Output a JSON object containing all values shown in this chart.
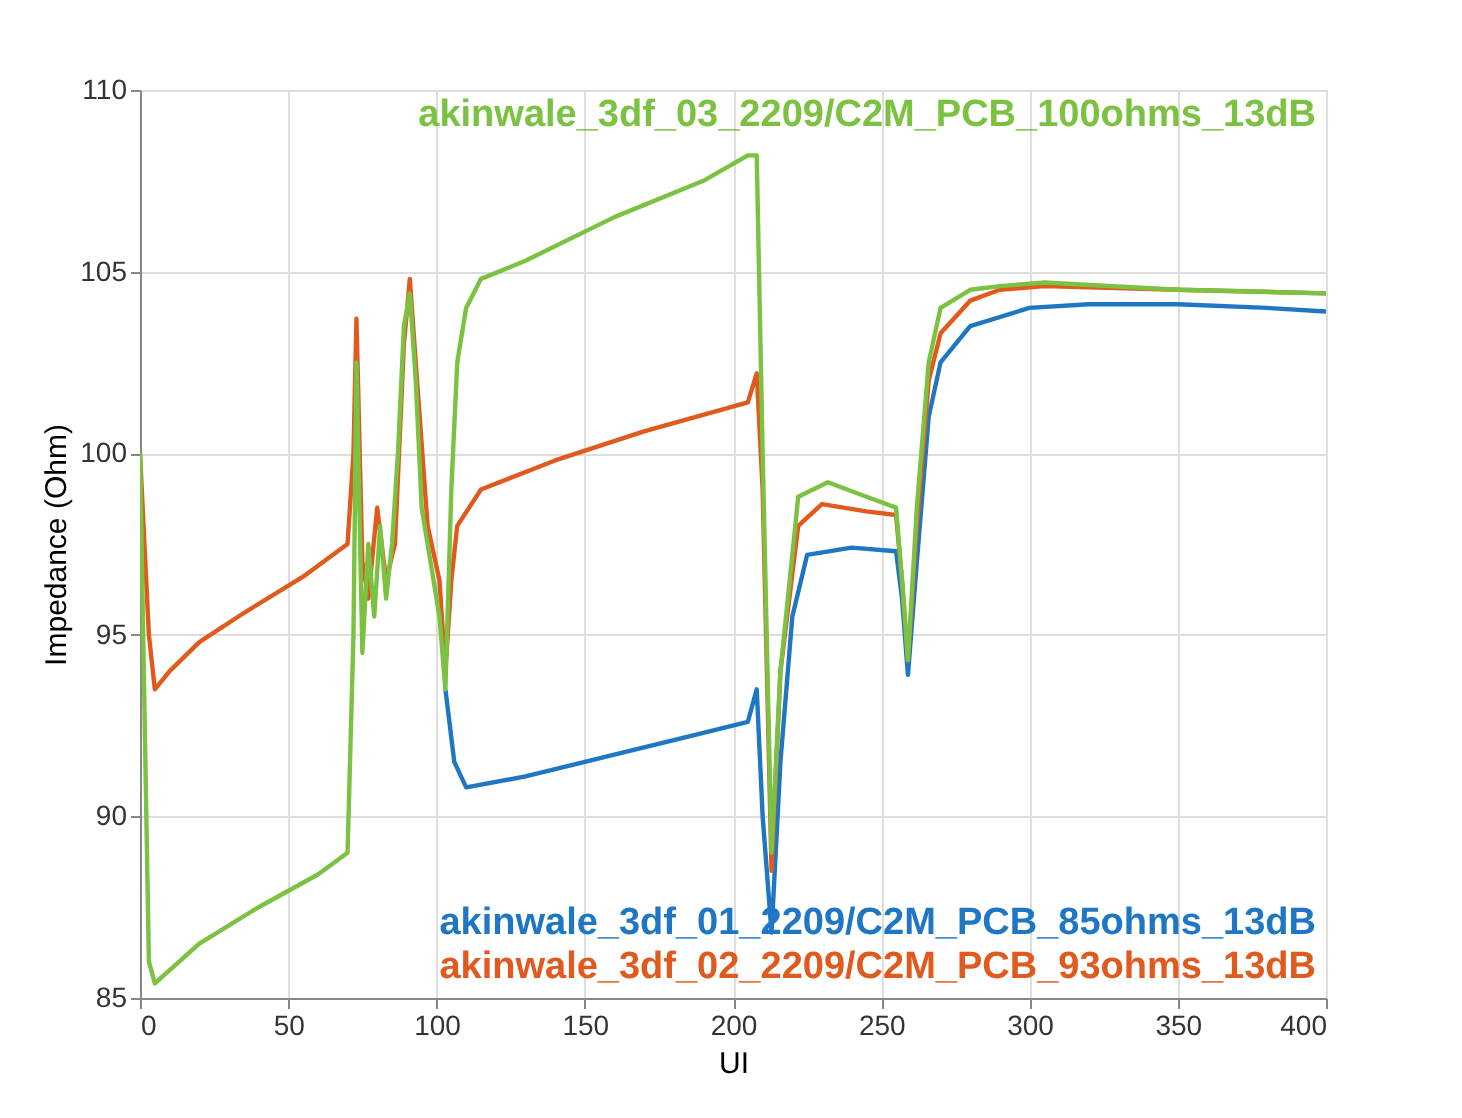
{
  "chart_data": {
    "type": "line",
    "xlabel": "UI",
    "ylabel": "Impedance (Ohm)",
    "xlim": [
      0,
      400
    ],
    "xticks": [
      0,
      50,
      100,
      150,
      200,
      250,
      300,
      350,
      400
    ],
    "ylim": [
      85,
      110
    ],
    "yticks": [
      85,
      90,
      95,
      100,
      105,
      110
    ],
    "grid": true,
    "line_style": "solid",
    "marker": "none",
    "series": [
      {
        "name": "akinwale_3df_01_2209/C2M_PCB_85ohms_13dB",
        "color": "#1f77c4",
        "x": [
          103,
          106,
          110,
          130,
          160,
          190,
          205,
          208,
          210,
          213,
          216,
          220,
          225,
          240,
          255,
          257,
          259,
          262,
          266,
          270,
          280,
          300,
          320,
          350,
          380,
          400
        ],
        "values": [
          93.5,
          91.5,
          90.8,
          91.1,
          91.7,
          92.3,
          92.6,
          93.5,
          90,
          86.8,
          91.5,
          95.5,
          97.2,
          97.4,
          97.3,
          96,
          93.9,
          97,
          101,
          102.5,
          103.5,
          104,
          104.1,
          104.1,
          104,
          103.9
        ]
      },
      {
        "name": "akinwale_3df_02_2209/C2M_PCB_93ohms_13dB",
        "color": "#e05a1e",
        "x": [
          0,
          3,
          5,
          10,
          20,
          35,
          55,
          70,
          72,
          73,
          75,
          77,
          80,
          83,
          86,
          89,
          91,
          93,
          97,
          101,
          103,
          105,
          107,
          115,
          140,
          170,
          205,
          208,
          210,
          213,
          216,
          222,
          230,
          245,
          255,
          257,
          259,
          262,
          266,
          270,
          280,
          290,
          305,
          350,
          400
        ],
        "values": [
          100,
          95,
          93.5,
          94,
          94.8,
          95.6,
          96.6,
          97.5,
          100,
          103.7,
          97,
          96,
          98.5,
          96.5,
          97.5,
          103,
          104.8,
          102.5,
          98,
          96.5,
          94,
          96.5,
          98,
          99,
          99.8,
          100.6,
          101.4,
          102.2,
          99,
          88.5,
          94,
          98,
          98.6,
          98.4,
          98.3,
          96.5,
          94.3,
          98,
          102,
          103.3,
          104.2,
          104.5,
          104.6,
          104.5,
          104.4
        ]
      },
      {
        "name": "akinwale_3df_03_2209/C2M_PCB_100ohms_13dB",
        "color": "#7cc242",
        "x": [
          0,
          3,
          5,
          20,
          40,
          60,
          70,
          72,
          73,
          75,
          77,
          79,
          81,
          83,
          85,
          87,
          89,
          91,
          93,
          95,
          98,
          101,
          103,
          105,
          107,
          110,
          115,
          130,
          160,
          190,
          205,
          208,
          210,
          213,
          216,
          222,
          232,
          245,
          255,
          257,
          259,
          262,
          266,
          270,
          280,
          290,
          305,
          350,
          400
        ],
        "values": [
          100,
          86,
          85.4,
          86.5,
          87.5,
          88.4,
          89,
          95,
          102.5,
          94.5,
          97.5,
          95.5,
          98,
          96,
          97.5,
          100,
          103.5,
          104.4,
          102,
          98.5,
          97,
          95.5,
          93.5,
          99,
          102.5,
          104,
          104.8,
          105.3,
          106.5,
          107.5,
          108.2,
          108.2,
          100,
          89,
          94,
          98.8,
          99.2,
          98.8,
          98.5,
          96.5,
          94.3,
          98.5,
          102.5,
          104,
          104.5,
          104.6,
          104.7,
          104.5,
          104.4
        ]
      }
    ]
  }
}
